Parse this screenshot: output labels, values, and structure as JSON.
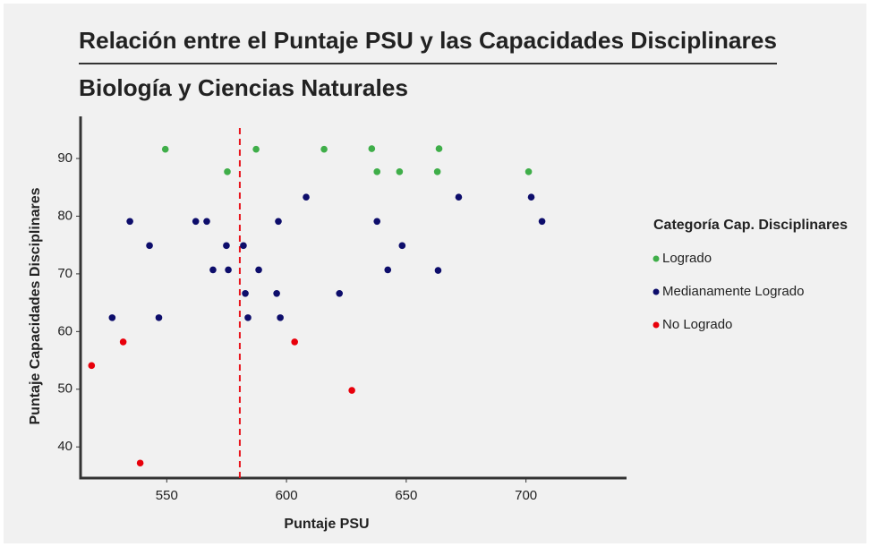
{
  "chart_data": {
    "type": "scatter",
    "title": "Relación entre el Puntaje PSU y las Capacidades Disciplinares",
    "subtitle": "Biología y Ciencias Naturales",
    "x_label": "Puntaje PSU",
    "y_label": "Puntaje Capacidades Disciplinares",
    "legend_title": "Categoría Cap. Disciplinares",
    "legend_position": "right",
    "xlim": [
      514,
      742
    ],
    "ylim": [
      34.6,
      97.3
    ],
    "xticks": [
      550,
      600,
      650,
      700
    ],
    "yticks": [
      40,
      50,
      60,
      70,
      80,
      90
    ],
    "reference_line_x": 580.5,
    "reference_line_color": "#e8141c",
    "series": [
      {
        "name": "Logrado",
        "color": "#3fae49",
        "x": [
          549.4,
          575.3,
          587.3,
          615.7,
          635.6,
          637.8,
          647.2,
          663.7,
          663.0,
          701.1
        ],
        "values": [
          91.6,
          87.7,
          91.6,
          91.6,
          91.7,
          87.7,
          87.7,
          91.7,
          87.7,
          87.7
        ]
      },
      {
        "name": "Medianamente Logrado",
        "color": "#0d0d6b",
        "x": [
          534.6,
          542.8,
          527.2,
          546.7,
          562.1,
          566.7,
          569.3,
          574.9,
          575.7,
          582.0,
          582.8,
          583.9,
          588.4,
          595.9,
          596.6,
          597.4,
          608.2,
          622.1,
          637.8,
          642.3,
          648.3,
          663.3,
          671.9,
          702.2,
          706.7
        ],
        "values": [
          79.1,
          74.9,
          62.4,
          62.4,
          79.1,
          79.1,
          70.7,
          74.9,
          70.7,
          74.9,
          66.6,
          62.4,
          70.7,
          66.6,
          79.1,
          62.4,
          83.3,
          66.6,
          79.1,
          70.7,
          74.9,
          70.6,
          83.3,
          83.3,
          79.1
        ]
      },
      {
        "name": "No Logrado",
        "color": "#e8000b",
        "x": [
          518.6,
          531.8,
          538.9,
          603.4,
          627.3
        ],
        "values": [
          54.1,
          58.2,
          37.2,
          58.2,
          49.8
        ]
      }
    ]
  }
}
